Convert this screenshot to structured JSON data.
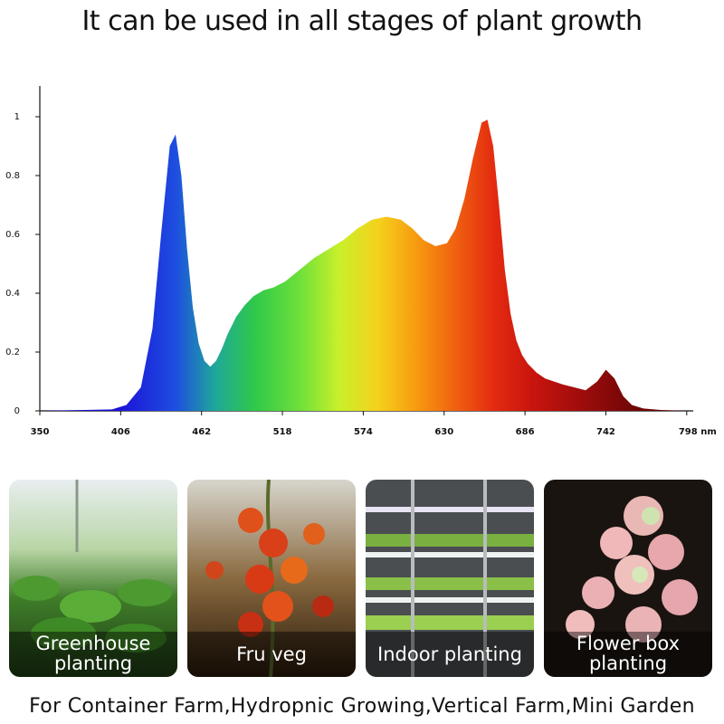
{
  "title": "It can be used in all stages of plant growth",
  "chart_data": {
    "type": "area",
    "title": "",
    "xlabel": "",
    "ylabel": "",
    "x_unit": "nm",
    "xlim": [
      350,
      800
    ],
    "ylim": [
      0,
      1
    ],
    "x_ticks": [
      350,
      406,
      462,
      518,
      574,
      630,
      686,
      742,
      798
    ],
    "x_tick_labels": [
      "350",
      "406",
      "462",
      "518",
      "574",
      "630",
      "686",
      "742",
      "798 nm"
    ],
    "y_ticks": [
      0,
      0.2,
      0.4,
      0.6,
      0.8,
      1
    ],
    "y_tick_labels": [
      "0",
      "0.2",
      "0.4",
      "0.6",
      "0.8",
      "1"
    ],
    "grid": false,
    "series": [
      {
        "x": [
          350,
          400,
          410,
          420,
          428,
          434,
          440,
          444,
          448,
          452,
          456,
          460,
          464,
          468,
          472,
          476,
          480,
          486,
          492,
          498,
          505,
          512,
          520,
          530,
          540,
          550,
          560,
          570,
          580,
          590,
          600,
          608,
          616,
          624,
          632,
          638,
          644,
          650,
          656,
          660,
          664,
          668,
          672,
          676,
          680,
          684,
          688,
          694,
          700,
          706,
          712,
          720,
          728,
          736,
          742,
          748,
          754,
          760,
          768,
          780,
          798
        ],
        "values": [
          0,
          0.005,
          0.02,
          0.08,
          0.28,
          0.6,
          0.9,
          0.94,
          0.8,
          0.55,
          0.35,
          0.23,
          0.17,
          0.15,
          0.17,
          0.21,
          0.26,
          0.32,
          0.36,
          0.39,
          0.41,
          0.42,
          0.44,
          0.48,
          0.52,
          0.55,
          0.58,
          0.62,
          0.65,
          0.66,
          0.65,
          0.62,
          0.58,
          0.56,
          0.57,
          0.62,
          0.72,
          0.86,
          0.98,
          0.99,
          0.9,
          0.7,
          0.48,
          0.33,
          0.24,
          0.19,
          0.16,
          0.13,
          0.11,
          0.1,
          0.09,
          0.08,
          0.07,
          0.1,
          0.14,
          0.11,
          0.05,
          0.02,
          0.008,
          0.003,
          0
        ]
      }
    ]
  },
  "tiles": [
    {
      "label": "Greenhouse planting",
      "line1": "Greenhouse",
      "line2": "planting"
    },
    {
      "label": "Fru veg",
      "line1": "Fru veg",
      "line2": ""
    },
    {
      "label": "Indoor planting",
      "line1": "Indoor planting",
      "line2": ""
    },
    {
      "label": "Flower box planting",
      "line1": "Flower box",
      "line2": "planting"
    }
  ],
  "footer": "For Container Farm,Hydropnic Growing,Vertical Farm,Mini Garden"
}
